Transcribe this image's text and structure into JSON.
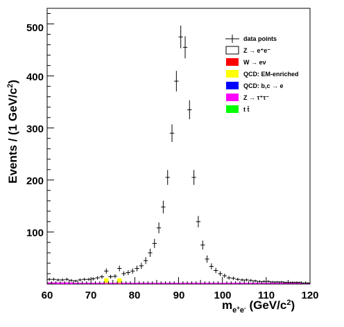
{
  "chart_data": {
    "type": "histogram",
    "ylabel": {
      "main": "Events / (1 GeV/c",
      "sup": "2",
      "tail": ")"
    },
    "xlabel": {
      "m": "m",
      "sub": "e",
      "sub_sup1": "+",
      "sub_mid": "e",
      "sub_sup2": "-",
      "unit": " (GeV/c",
      "unit_sup": "2",
      "unit_tail": ")"
    },
    "xlim": [
      60,
      120
    ],
    "ylim": [
      0,
      530
    ],
    "x_ticks": [
      "60",
      "70",
      "80",
      "90",
      "100",
      "110",
      "120"
    ],
    "y_ticks": [
      "100",
      "200",
      "300",
      "400",
      "500"
    ],
    "legend": {
      "placement": "top-right",
      "entries": [
        {
          "label": "data points",
          "style": "marker",
          "color": "#000000"
        },
        {
          "label": "Z → e⁺e⁻",
          "style": "box",
          "color": "#ffffff"
        },
        {
          "label": "W → eν",
          "style": "box",
          "color": "#ff0000"
        },
        {
          "label": "QCD: EM-enriched",
          "style": "box",
          "color": "#ffff00"
        },
        {
          "label": "QCD: b,c → e",
          "style": "box",
          "color": "#0000ff"
        },
        {
          "label": "Z → τ⁺τ⁻",
          "style": "box",
          "color": "#ff00ff"
        },
        {
          "label": "t t̄",
          "style": "box",
          "color": "#00ff00"
        }
      ]
    },
    "series": [
      {
        "name": "data points",
        "x": [
          60.5,
          61.5,
          62.5,
          63.5,
          64.5,
          65.5,
          66.5,
          67.5,
          68.5,
          69.5,
          70.5,
          71.5,
          72.5,
          73.5,
          74.5,
          75.5,
          76.5,
          77.5,
          78.5,
          79.5,
          80.5,
          81.5,
          82.5,
          83.5,
          84.5,
          85.5,
          86.5,
          87.5,
          88.5,
          89.5,
          90.5,
          91.5,
          92.5,
          93.5,
          94.5,
          95.5,
          96.5,
          97.5,
          98.5,
          99.5,
          100.5,
          101.5,
          102.5,
          103.5,
          104.5,
          105.5,
          106.5,
          107.5,
          108.5,
          109.5,
          110.5,
          111.5,
          112.5,
          113.5,
          114.5,
          115.5,
          116.5,
          117.5,
          118.5,
          119.5
        ],
        "y": [
          9,
          9,
          8,
          8,
          9,
          7,
          6,
          8,
          9,
          9,
          10,
          12,
          14,
          25,
          14,
          15,
          30,
          20,
          22,
          25,
          30,
          35,
          45,
          60,
          78,
          108,
          148,
          205,
          290,
          390,
          475,
          455,
          335,
          205,
          120,
          75,
          48,
          34,
          26,
          20,
          16,
          12,
          11,
          9,
          8,
          8,
          7,
          6,
          5,
          5,
          5,
          4,
          4,
          4,
          3,
          3,
          3,
          3,
          2,
          2
        ]
      }
    ],
    "stacked_mc": [
      {
        "name": "QCD: EM-enriched",
        "color": "#ffff00",
        "x": [
          73.5,
          76.5
        ],
        "y": [
          11,
          11
        ]
      },
      {
        "name": "Z → τ⁺τ⁻",
        "color": "#ff00ff",
        "x": [
          60.5,
          61.5,
          62.5,
          63.5,
          64.5,
          65.5
        ],
        "y": [
          3,
          3,
          3,
          3,
          3,
          3
        ]
      }
    ]
  }
}
